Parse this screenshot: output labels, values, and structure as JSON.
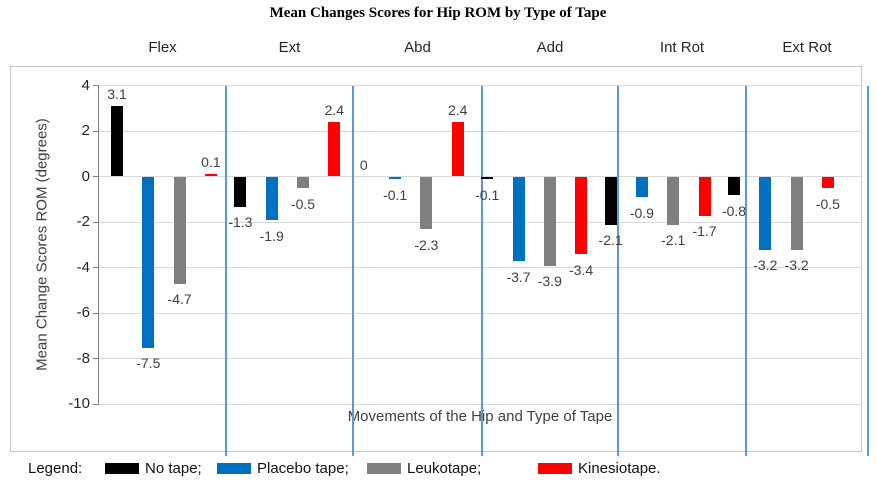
{
  "title": "Mean Changes Scores for Hip ROM by Type of Tape",
  "y_axis_title": "Mean Change Scores ROM (degrees)",
  "x_axis_title": "Movements of the Hip and Type of Tape",
  "legend": {
    "label": "Legend:",
    "items": [
      {
        "name": "No tape;",
        "color": "#000000"
      },
      {
        "name": "Placebo tape;",
        "color": "#0070C0"
      },
      {
        "name": "Leukotape;",
        "color": "#7F7F7F"
      },
      {
        "name": "Kinesiotape.",
        "color": "#FF0000"
      }
    ]
  },
  "chart_data": {
    "type": "bar",
    "title": "Mean Changes Scores for Hip ROM by Type of Tape",
    "categories": [
      "Flex",
      "Ext",
      "Abd",
      "Add",
      "Int Rot",
      "Ext Rot"
    ],
    "series": [
      {
        "name": "No tape",
        "color": "#000000",
        "values": [
          3.1,
          -1.3,
          0,
          -0.1,
          -2.1,
          -0.8
        ]
      },
      {
        "name": "Placebo tape",
        "color": "#0070C0",
        "values": [
          -7.5,
          -1.9,
          -0.1,
          -3.7,
          -0.9,
          -3.2
        ]
      },
      {
        "name": "Leukotape",
        "color": "#7F7F7F",
        "values": [
          -4.7,
          -0.5,
          -2.3,
          -3.9,
          -2.1,
          -3.2
        ]
      },
      {
        "name": "Kinesiotape",
        "color": "#FF0000",
        "values": [
          0.1,
          2.4,
          2.4,
          -3.4,
          -1.7,
          -0.5
        ]
      }
    ],
    "xlabel": "Movements of the Hip and Type of Tape",
    "ylabel": "Mean Change Scores ROM (degrees)",
    "ylim": [
      -10,
      4
    ],
    "yticks": [
      4,
      2,
      0,
      -2,
      -4,
      -6,
      -8,
      -10
    ],
    "grid": true,
    "legend_position": "bottom"
  },
  "colors": {
    "separator": "#5B9BD5",
    "gridline": "#D9D9D9",
    "axis": "#7F7F7F",
    "data_label": "#404040",
    "chart_border": "#C9C7C5"
  }
}
